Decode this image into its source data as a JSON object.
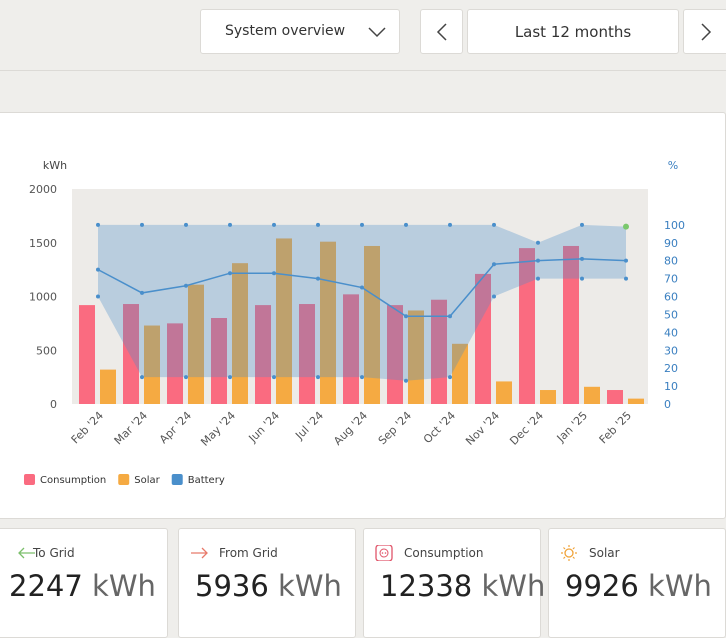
{
  "header": {
    "view": "System overview",
    "period": "Last 12 months"
  },
  "chart_data": {
    "type": "bar",
    "y_label": "kWh",
    "y2_label": "%",
    "categories": [
      "Feb '24",
      "Mar '24",
      "Apr '24",
      "May '24",
      "Jun '24",
      "Jul '24",
      "Aug '24",
      "Sep '24",
      "Oct '24",
      "Nov '24",
      "Dec '24",
      "Jan '25",
      "Feb '25"
    ],
    "series": [
      {
        "name": "Consumption",
        "color": "#fa6b80",
        "values": [
          920,
          930,
          750,
          800,
          920,
          930,
          1020,
          920,
          970,
          1210,
          1450,
          1470,
          130
        ]
      },
      {
        "name": "Solar",
        "color": "#f5aa42",
        "values": [
          320,
          730,
          1110,
          1310,
          1540,
          1510,
          1470,
          870,
          560,
          210,
          130,
          160,
          50
        ]
      },
      {
        "name": "Battery",
        "color": "#4a8fcb",
        "axis": "y2",
        "values": [
          75,
          62,
          66,
          73,
          73,
          70,
          65,
          49,
          49,
          78,
          80,
          81,
          80
        ],
        "upper": [
          100,
          100,
          100,
          100,
          100,
          100,
          100,
          100,
          100,
          100,
          90,
          100,
          99
        ],
        "lower": [
          60,
          15,
          15,
          15,
          15,
          15,
          15,
          13,
          15,
          60,
          70,
          70,
          70
        ]
      }
    ],
    "ylim": [
      0,
      2000
    ],
    "yticks": [
      0,
      500,
      1000,
      1500,
      2000
    ],
    "y2lim": [
      0,
      120
    ],
    "y2ticks": [
      0,
      10,
      20,
      30,
      40,
      50,
      60,
      70,
      80,
      90,
      100
    ]
  },
  "cards": [
    {
      "title": "To Grid",
      "value": 2247,
      "unit": "kWh"
    },
    {
      "title": "From Grid",
      "value": 5936,
      "unit": "kWh"
    },
    {
      "title": "Consumption",
      "value": 12338,
      "unit": "kWh"
    },
    {
      "title": "Solar",
      "value": 9926,
      "unit": "kWh"
    }
  ]
}
